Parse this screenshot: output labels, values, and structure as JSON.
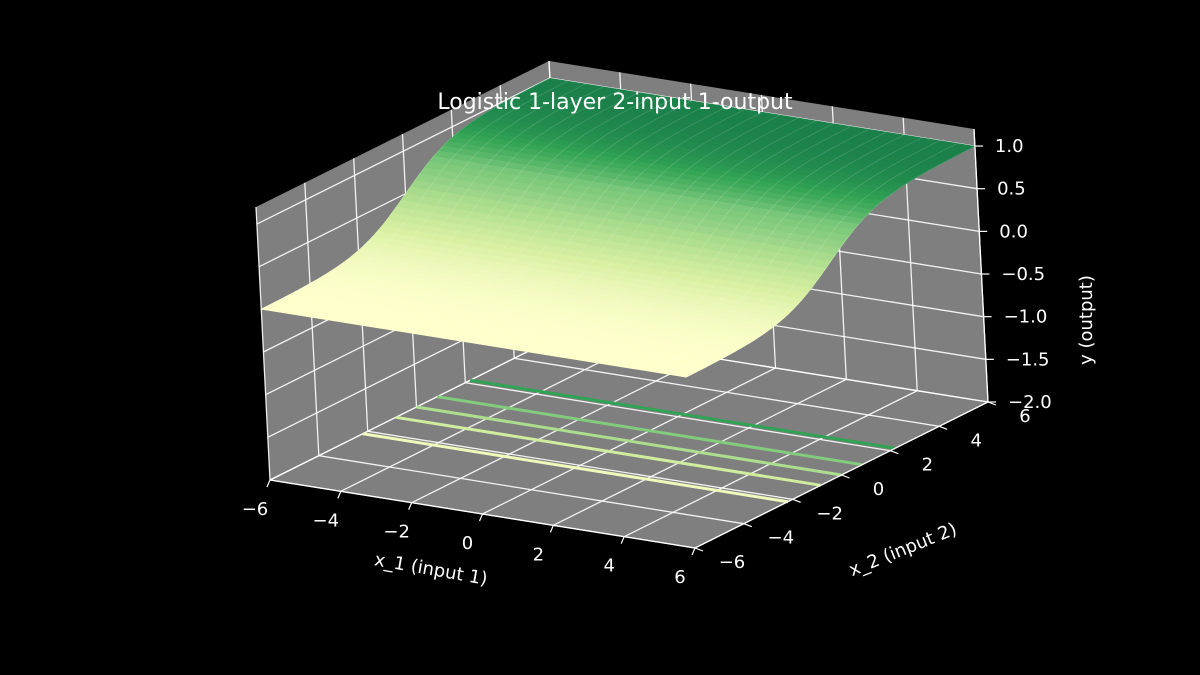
{
  "chart_data": {
    "type": "surface3d",
    "title": "Logistic 1-layer 2-input 1-output",
    "xlabel": "x_1 (input 1)",
    "ylabel": "x_2 (input 2)",
    "zlabel": "y (output)",
    "xlim": [
      -6,
      6
    ],
    "ylim": [
      -6,
      6
    ],
    "zlim": [
      -2.0,
      1.2
    ],
    "xticks": [
      "−6",
      "−4",
      "−2",
      "0",
      "2",
      "4",
      "6"
    ],
    "yticks": [
      "−6",
      "−4",
      "−2",
      "0",
      "2",
      "4",
      "6"
    ],
    "zticks": [
      "−2.0",
      "−1.5",
      "−1.0",
      "−0.5",
      "0.0",
      "0.5",
      "1.0"
    ],
    "surface": {
      "function": "logistic",
      "x_range": [
        -6,
        6
      ],
      "y_range": [
        -6,
        6
      ],
      "z_min": 0.0,
      "z_max": 1.0,
      "depends_on": "x_2",
      "colormap": "YlGn"
    },
    "contour_levels": [
      0.1,
      0.3,
      0.5,
      0.7,
      0.9
    ],
    "contour_offset_z": -2.0,
    "colors": {
      "background": "#000000",
      "pane": "#7f7f7f",
      "grid": "#ffffff",
      "text": "#ffffff",
      "surface_low": "#ffffcc",
      "surface_high": "#1a7f4a"
    }
  }
}
